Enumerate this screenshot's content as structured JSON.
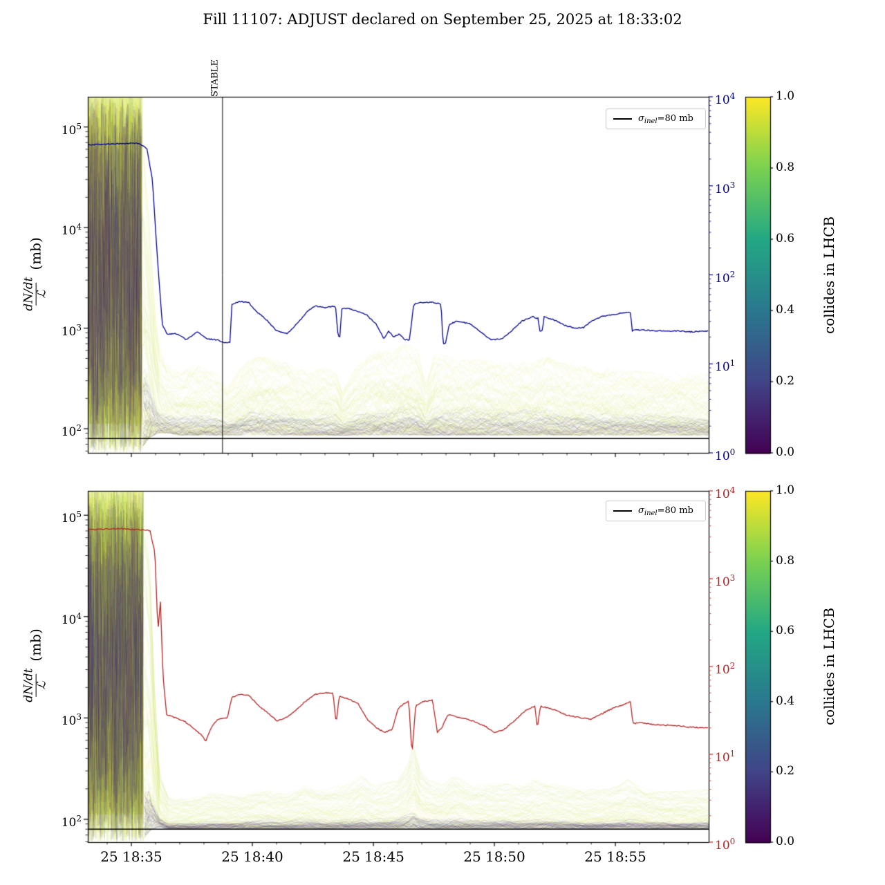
{
  "title": "Fill 11107: ADJUST declared on September 25, 2025 at 18:33:02",
  "x_tick_labels": [
    "25 18:35",
    "25 18:40",
    "25 18:45",
    "25 18:50",
    "25 18:55"
  ],
  "chart_data": [
    {
      "type": "line",
      "panel": "top",
      "ylabel_numerator": "dN/dt",
      "ylabel_denominator": "ℒ",
      "ylabel_unit": "(mb)",
      "left_axis": {
        "scale": "log",
        "tick_base": "10",
        "tick_exponents": [
          2,
          3,
          4,
          5
        ],
        "log_range": [
          1.76,
          5.3
        ]
      },
      "right_axis": {
        "scale": "log",
        "tick_base": "10",
        "tick_exponents": [
          0,
          1,
          2,
          3,
          4
        ],
        "log_range": [
          0,
          4
        ],
        "color": "#00008b"
      },
      "x_axis": {
        "major_t": [
          0.0701,
          0.265,
          0.46,
          0.6548,
          0.8497
        ],
        "minor_step": 0.038987,
        "tick_labels": []
      },
      "legend": {
        "sigma": "σ",
        "subscript": "inel",
        "suffix": "=80 mb",
        "line_color": "#000000"
      },
      "sigma_line_mb": 80,
      "stable_annotation": {
        "label": "STABLE",
        "t": 0.217
      },
      "colorbar": {
        "label": "collides in LHCB",
        "tick_labels": [
          "0.0",
          "0.2",
          "0.4",
          "0.6",
          "0.8",
          "1.0"
        ],
        "colormap_anchors": [
          "#440154",
          "#414487",
          "#2a788e",
          "#22a884",
          "#7ad151",
          "#fde725"
        ]
      },
      "curve": {
        "color": "#00008b",
        "axis": "right",
        "points": [
          [
            0,
            3.46
          ],
          [
            0.04,
            3.47
          ],
          [
            0.081,
            3.48
          ],
          [
            0.095,
            3.42
          ],
          [
            0.104,
            3.07
          ],
          [
            0.112,
            2.2
          ],
          [
            0.12,
            1.44
          ],
          [
            0.128,
            1.33
          ],
          [
            0.143,
            1.34
          ],
          [
            0.159,
            1.27
          ],
          [
            0.176,
            1.36
          ],
          [
            0.193,
            1.28
          ],
          [
            0.209,
            1.27
          ],
          [
            0.217,
            1.24
          ],
          [
            0.229,
            1.24
          ],
          [
            0.232,
            1.67
          ],
          [
            0.243,
            1.7
          ],
          [
            0.259,
            1.69
          ],
          [
            0.271,
            1.59
          ],
          [
            0.287,
            1.5
          ],
          [
            0.304,
            1.37
          ],
          [
            0.321,
            1.34
          ],
          [
            0.337,
            1.45
          ],
          [
            0.354,
            1.59
          ],
          [
            0.365,
            1.65
          ],
          [
            0.382,
            1.63
          ],
          [
            0.399,
            1.65
          ],
          [
            0.403,
            1.31
          ],
          [
            0.406,
            1.31
          ],
          [
            0.409,
            1.62
          ],
          [
            0.421,
            1.62
          ],
          [
            0.438,
            1.58
          ],
          [
            0.449,
            1.55
          ],
          [
            0.465,
            1.44
          ],
          [
            0.477,
            1.28
          ],
          [
            0.484,
            1.37
          ],
          [
            0.493,
            1.3
          ],
          [
            0.502,
            1.34
          ],
          [
            0.51,
            1.27
          ],
          [
            0.518,
            1.27
          ],
          [
            0.525,
            1.67
          ],
          [
            0.538,
            1.69
          ],
          [
            0.555,
            1.69
          ],
          [
            0.569,
            1.67
          ],
          [
            0.572,
            1.23
          ],
          [
            0.576,
            1.23
          ],
          [
            0.582,
            1.44
          ],
          [
            0.594,
            1.48
          ],
          [
            0.616,
            1.45
          ],
          [
            0.632,
            1.36
          ],
          [
            0.649,
            1.27
          ],
          [
            0.666,
            1.28
          ],
          [
            0.683,
            1.37
          ],
          [
            0.699,
            1.48
          ],
          [
            0.716,
            1.53
          ],
          [
            0.725,
            1.51
          ],
          [
            0.728,
            1.37
          ],
          [
            0.732,
            1.37
          ],
          [
            0.735,
            1.53
          ],
          [
            0.749,
            1.5
          ],
          [
            0.766,
            1.44
          ],
          [
            0.783,
            1.4
          ],
          [
            0.799,
            1.41
          ],
          [
            0.811,
            1.48
          ],
          [
            0.827,
            1.53
          ],
          [
            0.844,
            1.55
          ],
          [
            0.861,
            1.57
          ],
          [
            0.874,
            1.58
          ],
          [
            0.877,
            1.37
          ],
          [
            0.881,
            1.38
          ],
          [
            0.894,
            1.38
          ],
          [
            0.917,
            1.37
          ],
          [
            0.944,
            1.37
          ],
          [
            0.972,
            1.36
          ],
          [
            1,
            1.37
          ]
        ]
      },
      "band": {
        "chaos_end_t": 0.088,
        "n_yellow": 115,
        "n_dark": 45,
        "dark_level": 0.22,
        "yellow_wander": 0.1,
        "dark_wander": 0.05,
        "envelope": [
          [
            0,
            1.76,
            5.3
          ],
          [
            0.085,
            1.76,
            5.3
          ],
          [
            0.098,
            1.88,
            4.2
          ],
          [
            0.108,
            1.93,
            3.2
          ],
          [
            0.115,
            1.95,
            2.78
          ],
          [
            0.13,
            1.95,
            2.62
          ],
          [
            0.15,
            1.93,
            2.56
          ],
          [
            0.17,
            1.93,
            2.66
          ],
          [
            0.19,
            1.93,
            2.6
          ],
          [
            0.21,
            1.93,
            2.56
          ],
          [
            0.225,
            1.93,
            2.42
          ],
          [
            0.24,
            1.93,
            2.56
          ],
          [
            0.26,
            1.93,
            2.7
          ],
          [
            0.28,
            1.93,
            2.72
          ],
          [
            0.3,
            1.93,
            2.7
          ],
          [
            0.32,
            1.93,
            2.66
          ],
          [
            0.34,
            1.93,
            2.6
          ],
          [
            0.36,
            1.93,
            2.56
          ],
          [
            0.38,
            1.93,
            2.62
          ],
          [
            0.4,
            1.93,
            2.56
          ],
          [
            0.41,
            1.93,
            2.36
          ],
          [
            0.43,
            1.93,
            2.6
          ],
          [
            0.45,
            1.93,
            2.72
          ],
          [
            0.47,
            1.93,
            2.8
          ],
          [
            0.49,
            1.93,
            2.76
          ],
          [
            0.51,
            1.93,
            2.86
          ],
          [
            0.53,
            1.93,
            2.8
          ],
          [
            0.545,
            1.93,
            2.46
          ],
          [
            0.56,
            1.93,
            2.76
          ],
          [
            0.58,
            1.93,
            2.72
          ],
          [
            0.6,
            1.93,
            2.68
          ],
          [
            0.62,
            1.93,
            2.7
          ],
          [
            0.65,
            1.93,
            2.68
          ],
          [
            0.68,
            1.93,
            2.66
          ],
          [
            0.72,
            1.93,
            2.68
          ],
          [
            0.74,
            1.93,
            2.72
          ],
          [
            0.76,
            1.93,
            2.66
          ],
          [
            0.8,
            1.93,
            2.62
          ],
          [
            0.84,
            1.93,
            2.6
          ],
          [
            0.88,
            1.93,
            2.58
          ],
          [
            0.92,
            1.93,
            2.56
          ],
          [
            0.96,
            1.93,
            2.56
          ],
          [
            1,
            1.93,
            2.56
          ]
        ]
      }
    },
    {
      "type": "line",
      "panel": "bottom",
      "ylabel_numerator": "dN/dt",
      "ylabel_denominator": "ℒ",
      "ylabel_unit": "(mb)",
      "left_axis": {
        "scale": "log",
        "tick_base": "10",
        "tick_exponents": [
          2,
          3,
          4,
          5
        ],
        "log_range": [
          1.775,
          5.24
        ]
      },
      "right_axis": {
        "scale": "log",
        "tick_base": "10",
        "tick_exponents": [
          0,
          1,
          2,
          3,
          4
        ],
        "log_range": [
          0,
          4
        ],
        "color": "#b22222"
      },
      "x_axis": {
        "major_t": [
          0.0701,
          0.265,
          0.46,
          0.6548,
          0.8497
        ],
        "minor_step": 0.038987,
        "tick_labels": [
          "25 18:35",
          "25 18:40",
          "25 18:45",
          "25 18:50",
          "25 18:55"
        ]
      },
      "legend": {
        "sigma": "σ",
        "subscript": "inel",
        "suffix": "=80 mb",
        "line_color": "#000000"
      },
      "sigma_line_mb": 80,
      "stable_annotation": null,
      "colorbar": {
        "label": "collides in LHCB",
        "tick_labels": [
          "0.0",
          "0.2",
          "0.4",
          "0.6",
          "0.8",
          "1.0"
        ],
        "colormap_anchors": [
          "#440154",
          "#414487",
          "#2a788e",
          "#22a884",
          "#7ad151",
          "#fde725"
        ]
      },
      "curve": {
        "color": "#b22222",
        "axis": "right",
        "points": [
          [
            0,
            3.56
          ],
          [
            0.05,
            3.57
          ],
          [
            0.1,
            3.55
          ],
          [
            0.108,
            3.3
          ],
          [
            0.113,
            2.4
          ],
          [
            0.117,
            2.75
          ],
          [
            0.121,
            1.9
          ],
          [
            0.127,
            1.45
          ],
          [
            0.14,
            1.42
          ],
          [
            0.155,
            1.38
          ],
          [
            0.17,
            1.3
          ],
          [
            0.183,
            1.22
          ],
          [
            0.19,
            1.15
          ],
          [
            0.2,
            1.32
          ],
          [
            0.21,
            1.4
          ],
          [
            0.225,
            1.42
          ],
          [
            0.232,
            1.65
          ],
          [
            0.245,
            1.68
          ],
          [
            0.26,
            1.67
          ],
          [
            0.275,
            1.55
          ],
          [
            0.29,
            1.47
          ],
          [
            0.305,
            1.38
          ],
          [
            0.32,
            1.42
          ],
          [
            0.335,
            1.5
          ],
          [
            0.35,
            1.6
          ],
          [
            0.365,
            1.68
          ],
          [
            0.38,
            1.7
          ],
          [
            0.395,
            1.7
          ],
          [
            0.4,
            1.35
          ],
          [
            0.405,
            1.66
          ],
          [
            0.42,
            1.63
          ],
          [
            0.435,
            1.58
          ],
          [
            0.45,
            1.4
          ],
          [
            0.465,
            1.3
          ],
          [
            0.478,
            1.25
          ],
          [
            0.49,
            1.28
          ],
          [
            0.5,
            1.52
          ],
          [
            0.51,
            1.58
          ],
          [
            0.517,
            1.6
          ],
          [
            0.522,
            1
          ],
          [
            0.528,
            1.55
          ],
          [
            0.54,
            1.6
          ],
          [
            0.555,
            1.62
          ],
          [
            0.563,
            1.25
          ],
          [
            0.57,
            1.3
          ],
          [
            0.58,
            1.45
          ],
          [
            0.6,
            1.42
          ],
          [
            0.62,
            1.38
          ],
          [
            0.64,
            1.32
          ],
          [
            0.655,
            1.25
          ],
          [
            0.67,
            1.28
          ],
          [
            0.69,
            1.4
          ],
          [
            0.705,
            1.5
          ],
          [
            0.72,
            1.55
          ],
          [
            0.724,
            1.3
          ],
          [
            0.729,
            1.55
          ],
          [
            0.74,
            1.53
          ],
          [
            0.755,
            1.5
          ],
          [
            0.77,
            1.45
          ],
          [
            0.79,
            1.42
          ],
          [
            0.81,
            1.4
          ],
          [
            0.83,
            1.47
          ],
          [
            0.85,
            1.54
          ],
          [
            0.865,
            1.57
          ],
          [
            0.874,
            1.6
          ],
          [
            0.878,
            1.35
          ],
          [
            0.89,
            1.36
          ],
          [
            0.91,
            1.34
          ],
          [
            0.94,
            1.33
          ],
          [
            0.97,
            1.31
          ],
          [
            1,
            1.3
          ]
        ]
      },
      "band": {
        "chaos_end_t": 0.09,
        "n_yellow": 115,
        "n_dark": 45,
        "dark_level": 0.13,
        "yellow_wander": 0.08,
        "dark_wander": 0.04,
        "envelope": [
          [
            0,
            1.775,
            5.24
          ],
          [
            0.09,
            1.775,
            5.24
          ],
          [
            0.1,
            1.86,
            4.6
          ],
          [
            0.107,
            1.9,
            3.4
          ],
          [
            0.115,
            1.92,
            2.48
          ],
          [
            0.13,
            1.9,
            2.22
          ],
          [
            0.16,
            1.9,
            2.2
          ],
          [
            0.2,
            1.9,
            2.26
          ],
          [
            0.24,
            1.9,
            2.24
          ],
          [
            0.28,
            1.9,
            2.3
          ],
          [
            0.32,
            1.9,
            2.26
          ],
          [
            0.35,
            1.9,
            2.34
          ],
          [
            0.38,
            1.9,
            2.3
          ],
          [
            0.42,
            1.9,
            2.36
          ],
          [
            0.44,
            1.9,
            2.44
          ],
          [
            0.46,
            1.9,
            2.34
          ],
          [
            0.5,
            1.9,
            2.4
          ],
          [
            0.515,
            1.9,
            2.56
          ],
          [
            0.525,
            1.9,
            2.76
          ],
          [
            0.535,
            1.9,
            2.5
          ],
          [
            0.55,
            1.9,
            2.4
          ],
          [
            0.57,
            1.9,
            2.34
          ],
          [
            0.59,
            1.9,
            2.44
          ],
          [
            0.62,
            1.9,
            2.34
          ],
          [
            0.66,
            1.9,
            2.36
          ],
          [
            0.7,
            1.9,
            2.34
          ],
          [
            0.72,
            1.9,
            2.4
          ],
          [
            0.76,
            1.9,
            2.34
          ],
          [
            0.8,
            1.9,
            2.3
          ],
          [
            0.84,
            1.9,
            2.3
          ],
          [
            0.87,
            1.9,
            2.4
          ],
          [
            0.9,
            1.9,
            2.3
          ],
          [
            0.94,
            1.9,
            2.28
          ],
          [
            1,
            1.9,
            2.3
          ]
        ]
      }
    }
  ]
}
